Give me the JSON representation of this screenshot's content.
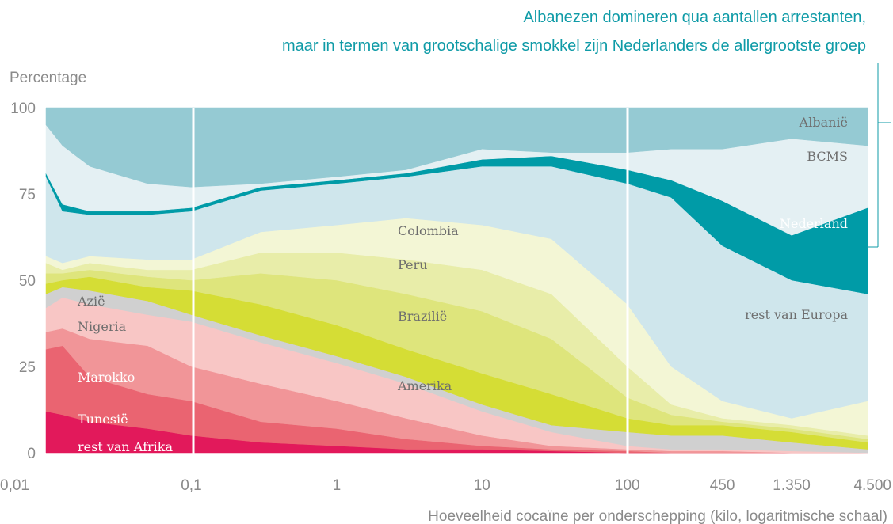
{
  "chart_data": {
    "type": "stacked-area",
    "title": [
      "Albanezen domineren qua aantallen arrestanten,",
      "maar in termen van grootschalige smokkel zijn Nederlanders de allergrootste groep"
    ],
    "y_label": "Percentage",
    "x_label": "Hoeveelheid cocaïne per onderschepping (kilo, logaritmische schaal)",
    "x_log": true,
    "grid": false,
    "x": [
      0.01,
      0.013,
      0.02,
      0.05,
      0.1,
      0.3,
      1,
      3,
      10,
      30,
      100,
      200,
      450,
      1350,
      4500
    ],
    "xlim": [
      0.01,
      4500
    ],
    "xticks": [
      {
        "value": 0.01,
        "label": "0,01"
      },
      {
        "value": 0.1,
        "label": "0,1"
      },
      1,
      10,
      100,
      450,
      {
        "value": 1350,
        "label": "1.350"
      },
      {
        "value": 4500,
        "label": "4.500"
      }
    ],
    "ylim": [
      0,
      100
    ],
    "yticks": [
      0,
      25,
      50,
      75,
      100
    ],
    "series": [
      {
        "name": "rest van Afrika",
        "color": "#e2195b",
        "values": [
          12,
          11,
          9,
          7,
          5,
          3,
          2,
          1,
          1,
          0.5,
          0,
          0,
          0,
          0,
          0
        ]
      },
      {
        "name": "Tunesië",
        "color": "#ea6471",
        "values": [
          18,
          20,
          13,
          10,
          10,
          6,
          5,
          3,
          1,
          0.5,
          0.5,
          0,
          0,
          0,
          0
        ]
      },
      {
        "name": "Marokko",
        "color": "#f19598",
        "values": [
          5,
          5,
          11,
          14,
          10,
          11,
          8,
          6,
          3,
          1,
          0.5,
          0.5,
          0.5,
          0,
          0
        ]
      },
      {
        "name": "Nigeria",
        "color": "#f8c6c5",
        "values": [
          7,
          9,
          10,
          9,
          13,
          12,
          11,
          10,
          7,
          4,
          1,
          0.5,
          0.5,
          0.5,
          0
        ]
      },
      {
        "name": "Azië",
        "color": "#d0d0d0",
        "values": [
          4,
          3,
          4,
          4,
          2,
          2,
          2,
          2,
          2,
          2,
          4,
          4,
          4,
          2.5,
          1
        ]
      },
      {
        "name": "Amerika",
        "color": "#d5dd35",
        "values": [
          3,
          2,
          4,
          4,
          7,
          9,
          9,
          8,
          9,
          9,
          4,
          3,
          3,
          3,
          2
        ]
      },
      {
        "name": "Brazilië",
        "color": "#dee57c",
        "values": [
          3,
          2,
          2,
          3,
          3,
          9,
          13,
          16,
          18,
          16,
          6,
          3,
          1,
          1,
          1
        ]
      },
      {
        "name": "Peru",
        "color": "#e8eda9",
        "values": [
          3,
          1,
          2,
          2,
          3,
          6,
          8,
          10,
          12,
          13,
          9,
          3,
          1,
          1,
          1
        ]
      },
      {
        "name": "Colombia",
        "color": "#f3f6d5",
        "values": [
          2,
          2,
          2,
          3,
          3,
          6,
          8,
          12,
          13,
          16,
          18,
          11,
          5,
          2,
          10
        ]
      },
      {
        "name": "rest van Europa",
        "color": "#cfe6ec",
        "values": [
          23,
          15,
          12,
          13,
          14,
          12,
          12,
          12,
          17,
          21,
          35,
          49,
          45,
          40,
          31
        ]
      },
      {
        "name": "Nederland",
        "color": "#009ba7",
        "values": [
          1,
          2,
          1,
          1,
          1,
          1,
          1,
          1,
          2,
          3,
          4,
          5,
          13,
          13,
          25
        ]
      },
      {
        "name": "BCMS",
        "color": "#e4f0f3",
        "values": [
          14,
          17,
          13,
          8,
          6,
          1,
          1,
          1,
          3,
          1,
          5,
          9,
          15,
          28,
          18
        ]
      },
      {
        "name": "Albanië",
        "color": "#95cad3",
        "values": [
          5,
          11,
          17,
          22,
          23,
          22,
          20,
          18,
          12,
          13,
          13,
          12,
          12,
          9,
          11
        ]
      }
    ]
  }
}
